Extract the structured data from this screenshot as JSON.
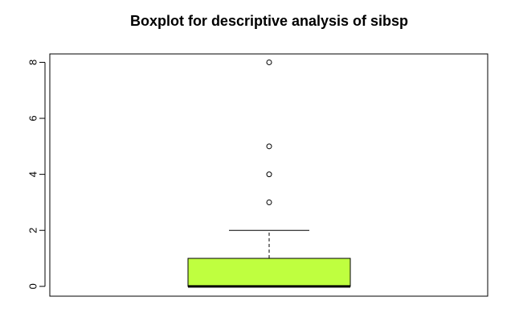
{
  "chart_data": {
    "type": "boxplot",
    "title": "Boxplot for descriptive analysis of sibsp",
    "xlabel": "",
    "ylabel": "",
    "ylim": [
      -0.35,
      8.3
    ],
    "yticks": [
      0,
      2,
      4,
      6,
      8
    ],
    "ytick_labels": [
      "0",
      "2",
      "4",
      "6",
      "8"
    ],
    "box": {
      "min": 0,
      "q1": 0,
      "median": 0,
      "q3": 1,
      "whisker_high": 2,
      "outliers": [
        3,
        4,
        5,
        8
      ]
    },
    "colors": {
      "box_fill": "#bfff3f",
      "stroke": "#000000"
    },
    "grid": false
  }
}
